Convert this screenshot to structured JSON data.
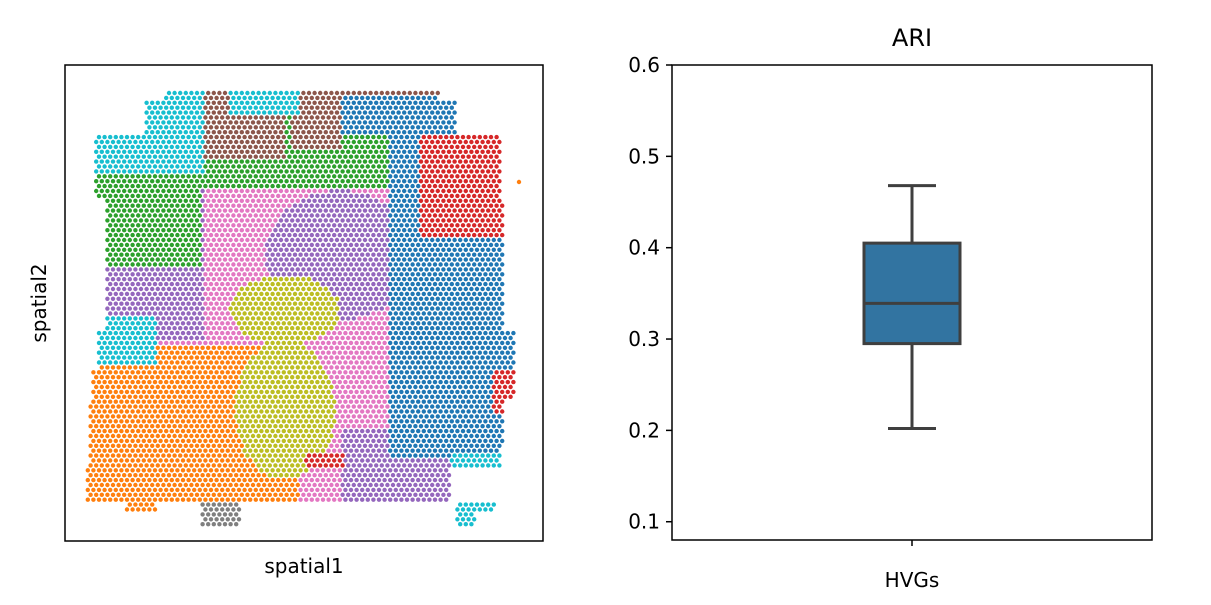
{
  "chart_data": [
    {
      "type": "scatter",
      "title": "",
      "xlabel": "spatial1",
      "ylabel": "spatial2",
      "ticks": "hidden",
      "description_type": "spatial transcriptomics cluster map",
      "colors": {
        "green": "#2ca02c",
        "brown": "#8c564b",
        "blue": "#1f77b4",
        "cyan": "#17becf",
        "red": "#d62728",
        "purple": "#9467bd",
        "pink": "#e377c2",
        "olive": "#bcbd22",
        "orange": "#ff7f0e",
        "gray": "#7f7f7f"
      }
    },
    {
      "type": "box",
      "title": "ARI",
      "categories": [
        "HVGs"
      ],
      "ylim": [
        0.08,
        0.6
      ],
      "yticks": [
        "0.1",
        "0.2",
        "0.3",
        "0.4",
        "0.5",
        "0.6"
      ],
      "box": {
        "whisker_low": 0.202,
        "q1": 0.295,
        "median": 0.339,
        "q3": 0.405,
        "whisker_high": 0.468
      },
      "color": "#3274a1"
    }
  ]
}
